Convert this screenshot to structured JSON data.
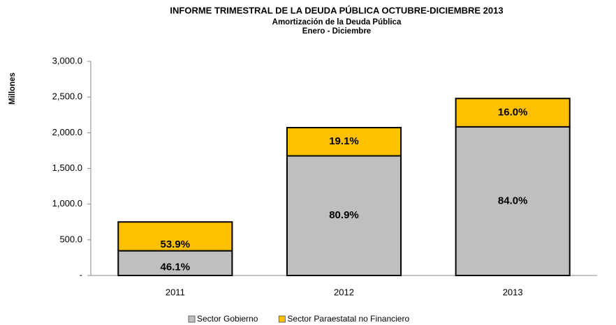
{
  "chart_data": {
    "type": "stacked_bar",
    "title": "INFORME TRIMESTRAL DE LA DEUDA PÚBLICA OCTUBRE-DICIEMBRE 2013",
    "subtitle": [
      "Amortización de la Deuda Pública",
      "Enero - Diciembre"
    ],
    "y_label": "Millones",
    "categories": [
      "2011",
      "2012",
      "2013"
    ],
    "series": [
      {
        "name": "Sector Gobierno",
        "color": "#bfbfbf",
        "values": [
          346,
          1676,
          2083
        ],
        "value_labels": [
          "46.1%",
          "80.9%",
          "84.0%"
        ]
      },
      {
        "name": "Sector Paraestatal no Financiero",
        "color": "#ffc000",
        "values": [
          404,
          396,
          397
        ],
        "value_labels": [
          "53.9%",
          "19.1%",
          "16.0%"
        ]
      }
    ],
    "ylim": [
      0,
      3000
    ],
    "yticks": [
      {
        "value": 0,
        "label": "-"
      },
      {
        "value": 500,
        "label": "500.0"
      },
      {
        "value": 1000,
        "label": "1,000.0"
      },
      {
        "value": 1500,
        "label": "1,500.0"
      },
      {
        "value": 2000,
        "label": "2,000.0"
      },
      {
        "value": 2500,
        "label": "2,500.0"
      },
      {
        "value": 3000,
        "label": "3,000.0"
      }
    ],
    "grid": false
  }
}
